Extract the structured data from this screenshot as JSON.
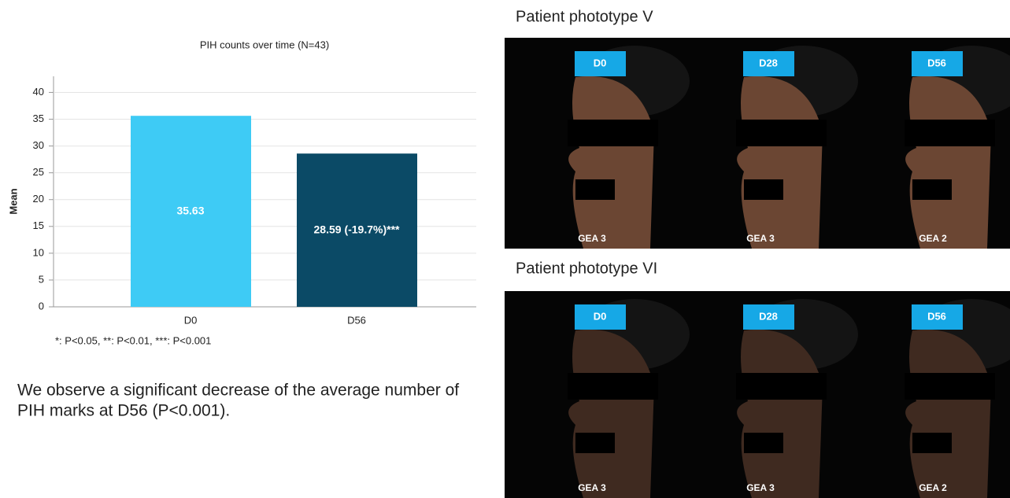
{
  "chart_data": {
    "type": "bar",
    "title": "PIH counts over time (N=43)",
    "y_label": "Mean",
    "categories": [
      "D0",
      "D56"
    ],
    "values": [
      35.63,
      28.59
    ],
    "value_labels": [
      "35.63",
      "28.59 (-19.7%)***"
    ],
    "colors": [
      "#3ecbf5",
      "#0b4a66"
    ],
    "ylim": [
      0,
      43
    ],
    "yticks": [
      0,
      5,
      10,
      15,
      20,
      25,
      30,
      35,
      40
    ],
    "grid": true,
    "note": "*: P<0.05, **: P<0.01, ***: P<0.001"
  },
  "conclusion": [
    "We observe a significant decrease of the average number of",
    "PIH marks at D56 (P<0.001)."
  ],
  "panels": [
    {
      "title": "Patient phototype V",
      "days": [
        "D0",
        "D28",
        "D56"
      ],
      "grades": [
        "GEA 3",
        "GEA 3",
        "GEA 2"
      ]
    },
    {
      "title": "Patient phototype VI",
      "days": [
        "D0",
        "D28",
        "D56"
      ],
      "grades": [
        "GEA 3",
        "GEA 3",
        "GEA 2"
      ]
    }
  ]
}
